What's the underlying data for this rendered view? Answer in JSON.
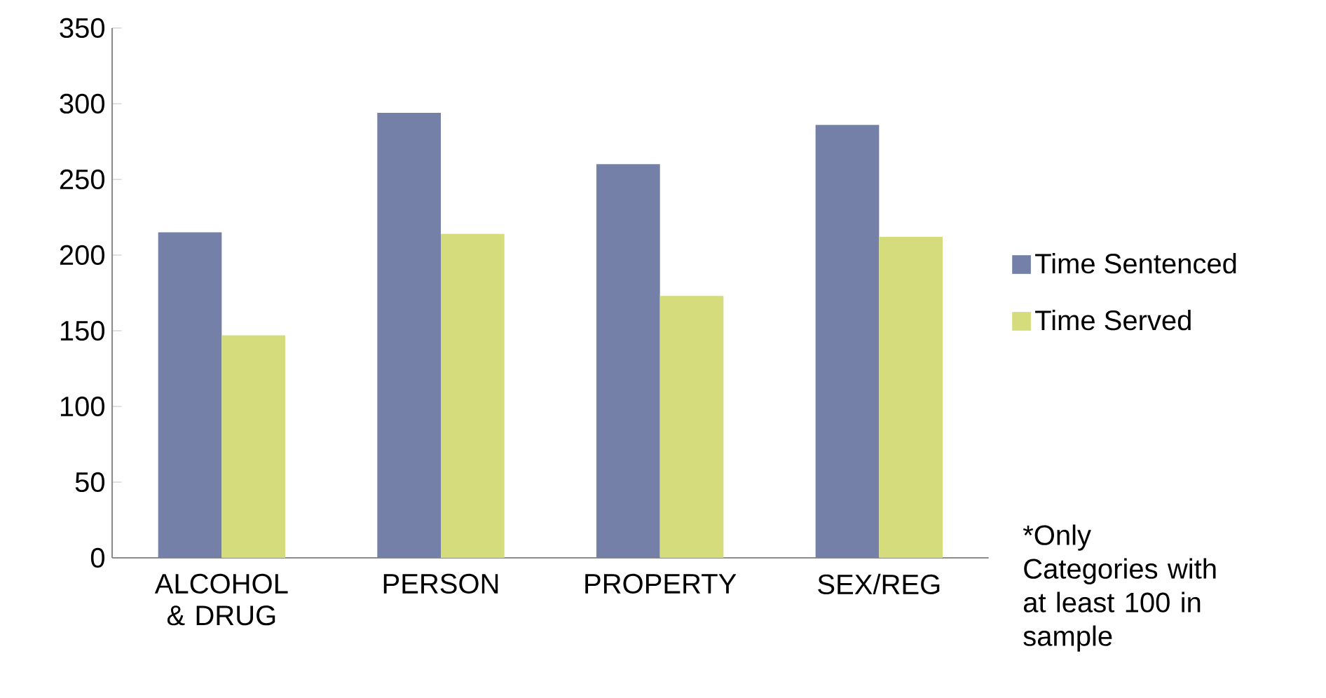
{
  "chart_data": {
    "type": "bar",
    "categories": [
      "ALCOHOL & DRUG",
      "PERSON",
      "PROPERTY",
      "SEX/REG"
    ],
    "series": [
      {
        "name": "Time Sentenced",
        "color": "#7480a8",
        "values": [
          215,
          294,
          260,
          286
        ]
      },
      {
        "name": "Time Served",
        "color": "#d4dc7c",
        "values": [
          147,
          214,
          173,
          212
        ]
      }
    ],
    "ylim": [
      0,
      350
    ],
    "yticks": [
      0,
      50,
      100,
      150,
      200,
      250,
      300,
      350
    ],
    "legend": "right",
    "grid": false,
    "annotations": [
      "*Only Categories with at least 100 in sample"
    ]
  }
}
